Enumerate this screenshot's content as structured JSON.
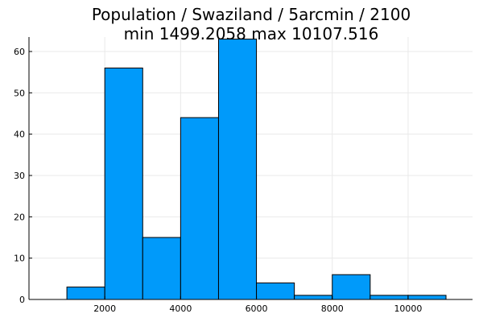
{
  "chart_data": {
    "type": "bar",
    "title": "Population / Swaziland / 5arcmin / 2100",
    "subtitle": "min 1499.2058  max 10107.516",
    "xlabel": "",
    "ylabel": "",
    "xlim": [
      0,
      11700
    ],
    "ylim": [
      0,
      63.5
    ],
    "bins": [
      {
        "x0": 1000,
        "x1": 2000,
        "count": 3
      },
      {
        "x0": 2000,
        "x1": 3000,
        "count": 56
      },
      {
        "x0": 3000,
        "x1": 4000,
        "count": 15
      },
      {
        "x0": 4000,
        "x1": 5000,
        "count": 44
      },
      {
        "x0": 5000,
        "x1": 6000,
        "count": 63
      },
      {
        "x0": 6000,
        "x1": 7000,
        "count": 4
      },
      {
        "x0": 7000,
        "x1": 8000,
        "count": 1
      },
      {
        "x0": 8000,
        "x1": 9000,
        "count": 6
      },
      {
        "x0": 9000,
        "x1": 10000,
        "count": 1
      },
      {
        "x0": 10000,
        "x1": 11000,
        "count": 1
      }
    ],
    "xticks": [
      2000,
      4000,
      6000,
      8000,
      10000
    ],
    "yticks": [
      0,
      10,
      20,
      30,
      40,
      50,
      60
    ],
    "grid": true,
    "legend": "none",
    "colors": {
      "bar": "#009AFA",
      "edge": "#000000",
      "grid": "#e9e9e9"
    }
  }
}
